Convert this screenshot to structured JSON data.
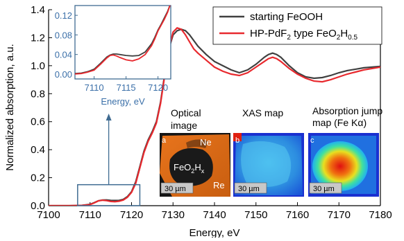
{
  "chart_data": {
    "type": "line",
    "xlabel": "Energy, eV",
    "ylabel": "Normalized absorption, a.u.",
    "xlim": [
      7100,
      7180
    ],
    "ylim": [
      0,
      1.4
    ],
    "xticks": [
      "7100",
      "7110",
      "7120",
      "7130",
      "7140",
      "7150",
      "7160",
      "7170",
      "7180"
    ],
    "yticks": [
      "0.0",
      "0.2",
      "0.4",
      "0.6",
      "0.8",
      "1.0",
      "1.2",
      "1.4"
    ],
    "legend": {
      "placement": "top-right",
      "entries": [
        {
          "label": "starting FeOOH",
          "color": "#404040"
        },
        {
          "label_parts": [
            "HP-PdF",
            "2",
            " type FeO",
            "2",
            "H",
            "0.5"
          ],
          "color": "#e8292e"
        }
      ]
    },
    "series": [
      {
        "name": "starting FeOOH",
        "color": "#404040",
        "x": [
          7100,
          7105,
          7108,
          7110,
          7111,
          7112,
          7113,
          7114,
          7115,
          7116,
          7117,
          7118,
          7119,
          7120,
          7121,
          7122,
          7123,
          7124,
          7125,
          7126,
          7127,
          7128,
          7129,
          7130,
          7131,
          7132,
          7133,
          7134,
          7135,
          7136,
          7138,
          7140,
          7142,
          7144,
          7146,
          7148,
          7150,
          7152,
          7153,
          7154,
          7155,
          7156,
          7158,
          7160,
          7162,
          7164,
          7166,
          7168,
          7170,
          7172,
          7174,
          7176,
          7178,
          7180
        ],
        "y": [
          0.0,
          0.0,
          0.002,
          0.01,
          0.022,
          0.035,
          0.04,
          0.041,
          0.038,
          0.037,
          0.038,
          0.045,
          0.065,
          0.1,
          0.17,
          0.28,
          0.39,
          0.47,
          0.53,
          0.6,
          0.74,
          0.94,
          1.12,
          1.22,
          1.25,
          1.26,
          1.25,
          1.22,
          1.18,
          1.14,
          1.08,
          1.03,
          1.0,
          0.97,
          0.95,
          0.97,
          1.01,
          1.06,
          1.08,
          1.09,
          1.08,
          1.06,
          1.0,
          0.95,
          0.92,
          0.91,
          0.915,
          0.93,
          0.95,
          0.965,
          0.975,
          0.985,
          0.99,
          0.995
        ]
      },
      {
        "name": "HP-PdF2 type FeO2H0.5",
        "color": "#e8292e",
        "x": [
          7100,
          7105,
          7108,
          7110,
          7111,
          7112,
          7113,
          7114,
          7115,
          7116,
          7117,
          7118,
          7119,
          7120,
          7121,
          7122,
          7123,
          7124,
          7125,
          7126,
          7127,
          7128,
          7129,
          7130,
          7131,
          7132,
          7133,
          7134,
          7135,
          7136,
          7138,
          7140,
          7142,
          7144,
          7146,
          7148,
          7150,
          7152,
          7153,
          7154,
          7155,
          7156,
          7158,
          7160,
          7162,
          7164,
          7166,
          7168,
          7170,
          7172,
          7174,
          7176,
          7178,
          7180
        ],
        "y": [
          0.0,
          0.0,
          0.002,
          0.008,
          0.02,
          0.034,
          0.039,
          0.036,
          0.03,
          0.028,
          0.032,
          0.04,
          0.06,
          0.095,
          0.16,
          0.27,
          0.38,
          0.46,
          0.52,
          0.59,
          0.73,
          0.93,
          1.12,
          1.24,
          1.27,
          1.26,
          1.22,
          1.17,
          1.12,
          1.09,
          1.04,
          0.99,
          0.96,
          0.94,
          0.93,
          0.95,
          0.99,
          1.03,
          1.05,
          1.06,
          1.05,
          1.03,
          0.98,
          0.94,
          0.91,
          0.89,
          0.885,
          0.9,
          0.92,
          0.94,
          0.955,
          0.97,
          0.98,
          0.99
        ]
      }
    ],
    "inset": {
      "xlabel": "Energy, eV",
      "xlim": [
        7107,
        7122
      ],
      "ylim": [
        -0.01,
        0.14
      ],
      "xticks": [
        "7110",
        "7115",
        "7120"
      ],
      "yticks": [
        "0.00",
        "0.04",
        "0.08",
        "0.12"
      ],
      "series": [
        {
          "name": "starting FeOOH",
          "x": [
            7107,
            7108,
            7109,
            7110,
            7111,
            7112,
            7112.5,
            7113,
            7113.5,
            7114,
            7115,
            7116,
            7117,
            7118,
            7119,
            7119.5,
            7120,
            7120.5,
            7121,
            7121.5,
            7122
          ],
          "y": [
            0.001,
            0.002,
            0.005,
            0.01,
            0.022,
            0.035,
            0.039,
            0.041,
            0.041,
            0.04,
            0.038,
            0.037,
            0.038,
            0.045,
            0.062,
            0.075,
            0.09,
            0.102,
            0.115,
            0.128,
            0.145
          ]
        },
        {
          "name": "HP-PdF2 type FeO2H0.5",
          "x": [
            7107,
            7108,
            7109,
            7110,
            7111,
            7112,
            7112.5,
            7113,
            7113.5,
            7114,
            7115,
            7116,
            7117,
            7118,
            7119,
            7119.5,
            7120,
            7120.5,
            7121,
            7121.5,
            7122
          ],
          "y": [
            0.0,
            0.001,
            0.004,
            0.008,
            0.02,
            0.033,
            0.038,
            0.039,
            0.037,
            0.034,
            0.029,
            0.027,
            0.031,
            0.04,
            0.058,
            0.072,
            0.088,
            0.1,
            0.112,
            0.126,
            0.145
          ]
        }
      ]
    },
    "zoom_box": {
      "xlim": [
        7107,
        7122
      ],
      "ylim": [
        0,
        0.15
      ]
    }
  },
  "images": [
    {
      "caption_lines": [
        "Optical",
        "image"
      ],
      "letter": "a",
      "scale": "30 µm",
      "labels": [
        {
          "text": "Ne"
        },
        {
          "parts": [
            "FeO",
            "2",
            "H",
            "x"
          ]
        },
        {
          "text": "Re"
        }
      ]
    },
    {
      "caption_lines": [
        "XAS map"
      ],
      "letter": "b",
      "scale": "30 µm"
    },
    {
      "caption_lines": [
        "Absorption jump",
        "map (Fe Kα)"
      ],
      "letter": "c",
      "scale": "30 µm"
    }
  ]
}
